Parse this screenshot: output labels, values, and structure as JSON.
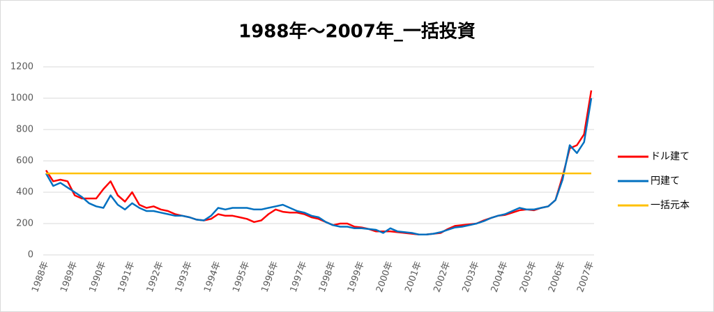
{
  "chart_data": {
    "type": "line",
    "title": "1988年～2007年_一括投資",
    "categories": [
      "1988年",
      null,
      null,
      null,
      "1989年",
      null,
      null,
      null,
      "1990年",
      null,
      null,
      null,
      "1991年",
      null,
      null,
      null,
      "1992年",
      null,
      null,
      null,
      "1993年",
      null,
      null,
      null,
      "1994年",
      null,
      null,
      null,
      "1995年",
      null,
      null,
      null,
      "1996年",
      null,
      null,
      null,
      "1997年",
      null,
      null,
      null,
      "1998年",
      null,
      null,
      null,
      "1999年",
      null,
      null,
      null,
      "2000年",
      null,
      null,
      null,
      "2001年",
      null,
      null,
      null,
      "2002年",
      null,
      null,
      null,
      "2003年",
      null,
      null,
      null,
      "2004年",
      null,
      null,
      null,
      "2005年",
      null,
      null,
      null,
      "2006年",
      null,
      null,
      null,
      "2007年"
    ],
    "series": [
      {
        "name": "ドル建て",
        "color": "#ff0000",
        "values": [
          540,
          470,
          480,
          470,
          380,
          360,
          360,
          360,
          420,
          470,
          380,
          340,
          400,
          320,
          300,
          310,
          290,
          280,
          260,
          250,
          240,
          225,
          220,
          230,
          260,
          250,
          250,
          240,
          230,
          210,
          220,
          260,
          290,
          275,
          270,
          270,
          260,
          240,
          230,
          210,
          190,
          200,
          200,
          180,
          175,
          165,
          150,
          150,
          150,
          145,
          140,
          135,
          130,
          130,
          135,
          140,
          165,
          185,
          190,
          195,
          200,
          220,
          235,
          250,
          255,
          270,
          285,
          290,
          285,
          300,
          310,
          350,
          500,
          680,
          700,
          770,
          1050
        ]
      },
      {
        "name": "円建て",
        "color": "#0070c0",
        "values": [
          520,
          440,
          460,
          430,
          400,
          370,
          330,
          310,
          300,
          380,
          320,
          290,
          330,
          300,
          280,
          280,
          270,
          260,
          250,
          250,
          240,
          225,
          220,
          250,
          300,
          290,
          300,
          300,
          300,
          290,
          290,
          300,
          310,
          320,
          300,
          280,
          270,
          250,
          240,
          210,
          190,
          180,
          180,
          170,
          170,
          165,
          160,
          140,
          170,
          150,
          145,
          140,
          130,
          130,
          135,
          145,
          160,
          175,
          180,
          190,
          200,
          215,
          235,
          250,
          260,
          280,
          300,
          290,
          290,
          300,
          310,
          350,
          480,
          700,
          650,
          720,
          1000
        ]
      },
      {
        "name": "一括元本",
        "color": "#ffc000",
        "values": [
          520,
          520,
          520,
          520,
          520,
          520,
          520,
          520,
          520,
          520,
          520,
          520,
          520,
          520,
          520,
          520,
          520,
          520,
          520,
          520,
          520,
          520,
          520,
          520,
          520,
          520,
          520,
          520,
          520,
          520,
          520,
          520,
          520,
          520,
          520,
          520,
          520,
          520,
          520,
          520,
          520,
          520,
          520,
          520,
          520,
          520,
          520,
          520,
          520,
          520,
          520,
          520,
          520,
          520,
          520,
          520,
          520,
          520,
          520,
          520,
          520,
          520,
          520,
          520,
          520,
          520,
          520,
          520,
          520,
          520,
          520,
          520,
          520,
          520,
          520,
          520,
          520
        ]
      }
    ],
    "ylim": [
      0,
      1200
    ],
    "yticks": [
      0,
      200,
      400,
      600,
      800,
      1000,
      1200
    ],
    "grid": true,
    "legend": "right"
  }
}
